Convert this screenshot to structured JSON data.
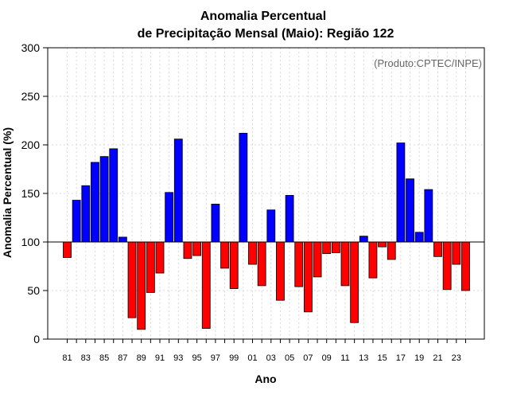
{
  "chart_data": {
    "type": "bar",
    "title_line1": "Anomalia Percentual",
    "title_line2": "de Precipitação Mensal (Maio): Região 122",
    "xlabel": "Ano",
    "ylabel": "Anomalia Percentual (%)",
    "credit": "(Produto:CPTEC/INPE)",
    "ylim": [
      0,
      300
    ],
    "yticks": [
      0,
      50,
      100,
      150,
      200,
      250,
      300
    ],
    "baseline": 100,
    "grid": true,
    "colors": {
      "above": "#0000ff",
      "below": "#ff0000"
    },
    "categories": [
      "81",
      "82",
      "83",
      "84",
      "85",
      "86",
      "87",
      "88",
      "89",
      "90",
      "91",
      "92",
      "93",
      "94",
      "95",
      "96",
      "97",
      "98",
      "99",
      "00",
      "01",
      "02",
      "03",
      "04",
      "05",
      "06",
      "07",
      "08",
      "09",
      "10",
      "11",
      "12",
      "13",
      "14",
      "15",
      "16",
      "17",
      "18",
      "19",
      "20",
      "21",
      "22",
      "23",
      "24"
    ],
    "values": [
      84,
      143,
      158,
      182,
      188,
      196,
      105,
      22,
      10,
      48,
      68,
      151,
      206,
      83,
      86,
      11,
      139,
      73,
      52,
      212,
      77,
      55,
      133,
      40,
      148,
      54,
      28,
      64,
      88,
      89,
      55,
      17,
      106,
      63,
      95,
      82,
      202,
      165,
      110,
      154,
      85,
      51,
      77,
      50
    ],
    "xtick_labels": [
      "81",
      "83",
      "85",
      "87",
      "89",
      "91",
      "93",
      "95",
      "97",
      "99",
      "01",
      "03",
      "05",
      "07",
      "09",
      "11",
      "13",
      "15",
      "17",
      "19",
      "21",
      "23"
    ]
  }
}
